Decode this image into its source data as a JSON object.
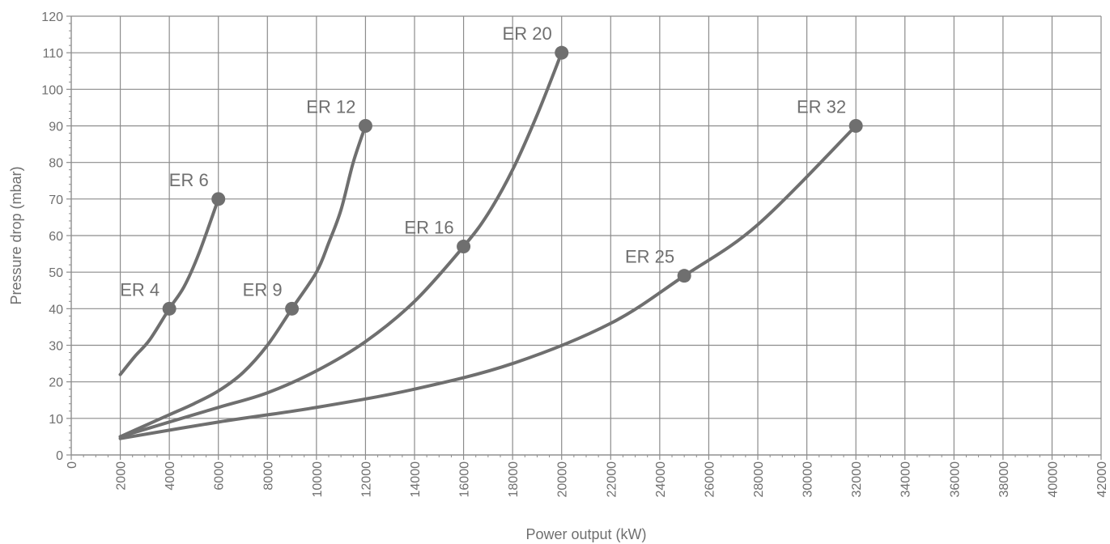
{
  "chart_data": {
    "type": "line",
    "title": "",
    "xlabel": "Power output (kW)",
    "ylabel": "Pressure drop (mbar)",
    "xlim": [
      0,
      42000
    ],
    "ylim": [
      0,
      120
    ],
    "x_ticks": [
      0,
      2000,
      4000,
      6000,
      8000,
      10000,
      12000,
      14000,
      16000,
      18000,
      20000,
      22000,
      24000,
      26000,
      28000,
      30000,
      32000,
      34000,
      36000,
      38000,
      40000,
      42000
    ],
    "y_ticks": [
      0,
      10,
      20,
      30,
      40,
      50,
      60,
      70,
      80,
      90,
      100,
      110,
      120
    ],
    "grid": true,
    "line_color": "#6f6f6f",
    "series": [
      {
        "name": "ER 4 / ER 6",
        "points": [
          [
            2000,
            22
          ],
          [
            2600,
            27
          ],
          [
            3200,
            31.5
          ],
          [
            4000,
            40
          ],
          [
            4600,
            46
          ],
          [
            5200,
            55
          ],
          [
            6000,
            70
          ]
        ],
        "markers": [
          {
            "label": "ER 4",
            "x": 4000,
            "y": 40
          },
          {
            "label": "ER 6",
            "x": 6000,
            "y": 70
          }
        ]
      },
      {
        "name": "ER 9 / ER 12",
        "points": [
          [
            2000,
            5
          ],
          [
            3000,
            8
          ],
          [
            4000,
            11
          ],
          [
            5000,
            14
          ],
          [
            6000,
            17.5
          ],
          [
            7000,
            22.5
          ],
          [
            8000,
            30
          ],
          [
            9000,
            40
          ],
          [
            10000,
            50
          ],
          [
            10500,
            58
          ],
          [
            11000,
            67
          ],
          [
            11500,
            80
          ],
          [
            12000,
            90
          ]
        ],
        "markers": [
          {
            "label": "ER 9",
            "x": 9000,
            "y": 40
          },
          {
            "label": "ER 12",
            "x": 12000,
            "y": 90
          }
        ]
      },
      {
        "name": "ER 16 / ER 20",
        "points": [
          [
            2000,
            5
          ],
          [
            4000,
            9
          ],
          [
            6000,
            13
          ],
          [
            8000,
            17
          ],
          [
            10000,
            23
          ],
          [
            12000,
            31
          ],
          [
            14000,
            42
          ],
          [
            16000,
            57
          ],
          [
            17000,
            66
          ],
          [
            18000,
            78
          ],
          [
            19000,
            93
          ],
          [
            20000,
            110
          ]
        ],
        "markers": [
          {
            "label": "ER 16",
            "x": 16000,
            "y": 57
          },
          {
            "label": "ER 20",
            "x": 20000,
            "y": 110
          }
        ]
      },
      {
        "name": "ER 25 / ER 32",
        "points": [
          [
            2000,
            4.5
          ],
          [
            6000,
            9
          ],
          [
            10000,
            13
          ],
          [
            14000,
            18
          ],
          [
            18000,
            25
          ],
          [
            22000,
            36
          ],
          [
            25000,
            49
          ],
          [
            28000,
            63
          ],
          [
            32000,
            90
          ]
        ],
        "markers": [
          {
            "label": "ER 25",
            "x": 25000,
            "y": 49
          },
          {
            "label": "ER 32",
            "x": 32000,
            "y": 90
          }
        ]
      }
    ]
  }
}
